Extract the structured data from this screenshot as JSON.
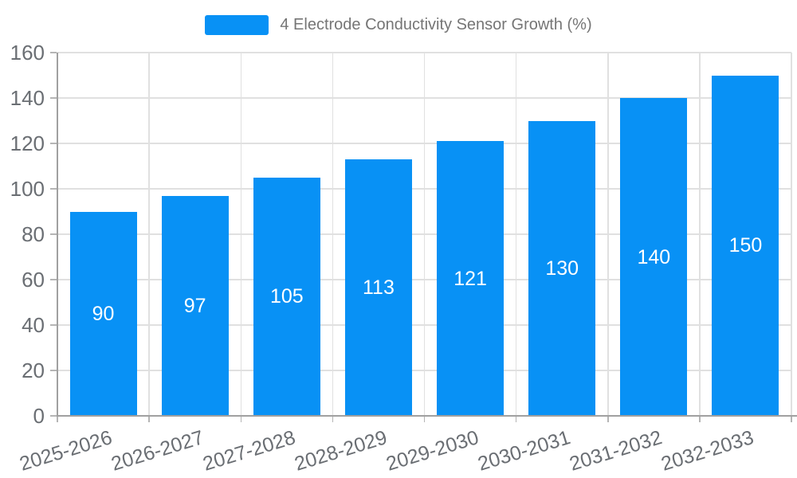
{
  "chart_data": {
    "type": "bar",
    "title": "4 Electrode Conductivity Sensor Growth (%)",
    "categories": [
      "2025-2026",
      "2026-2027",
      "2027-2028",
      "2028-2029",
      "2029-2030",
      "2030-2031",
      "2031-2032",
      "2032-2033"
    ],
    "values": [
      90,
      97,
      105,
      113,
      121,
      130,
      140,
      150
    ],
    "xlabel": "",
    "ylabel": "",
    "ylim": [
      0,
      160
    ],
    "yticks": [
      0,
      20,
      40,
      60,
      80,
      100,
      120,
      140,
      160
    ],
    "grid": true,
    "legend_position": "top-center",
    "x_label_rotation_deg": -17,
    "value_labels_inside_bars": true,
    "colors": {
      "bar": "#0891f5",
      "grid_line": "#e0e0e0",
      "axis_line": "#a0a0a0",
      "tick_mark": "#b5b5b5",
      "tick_label": "#6a6e73",
      "legend_text": "#757575",
      "value_label": "#ffffff",
      "background": "#ffffff"
    }
  }
}
